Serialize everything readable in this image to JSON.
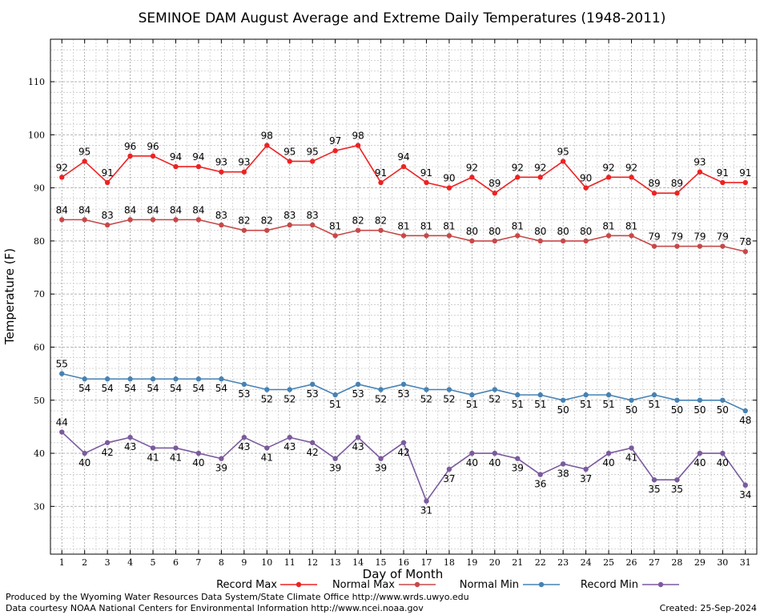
{
  "chart_data": {
    "type": "line",
    "title": "SEMINOE DAM August Average and Extreme Daily Temperatures (1948-2011)",
    "xlabel": "Day of Month",
    "ylabel": "Temperature (F)",
    "x": [
      1,
      2,
      3,
      4,
      5,
      6,
      7,
      8,
      9,
      10,
      11,
      12,
      13,
      14,
      15,
      16,
      17,
      18,
      19,
      20,
      21,
      22,
      23,
      24,
      25,
      26,
      27,
      28,
      29,
      30,
      31
    ],
    "xlim": [
      0.5,
      31.5
    ],
    "ylim": [
      21,
      118
    ],
    "yticks": [
      30,
      40,
      50,
      60,
      70,
      80,
      90,
      100,
      110
    ],
    "grid": true,
    "legend_position": "bottom",
    "series": [
      {
        "name": "Record Max",
        "color": "#ee2222",
        "marker": "circle",
        "values": [
          92,
          95,
          91,
          96,
          96,
          94,
          94,
          93,
          93,
          98,
          95,
          95,
          97,
          98,
          91,
          94,
          91,
          90,
          92,
          89,
          92,
          92,
          95,
          90,
          92,
          92,
          89,
          89,
          93,
          91,
          91
        ]
      },
      {
        "name": "Normal Max",
        "color": "#c84848",
        "marker": "circle",
        "values": [
          84,
          84,
          83,
          84,
          84,
          84,
          84,
          83,
          82,
          82,
          83,
          83,
          81,
          82,
          82,
          81,
          81,
          81,
          80,
          80,
          81,
          80,
          80,
          80,
          81,
          81,
          79,
          79,
          79,
          79,
          78
        ]
      },
      {
        "name": "Normal Min",
        "color": "#4682b4",
        "marker": "circle",
        "values": [
          55,
          54,
          54,
          54,
          54,
          54,
          54,
          54,
          53,
          52,
          52,
          53,
          51,
          53,
          52,
          53,
          52,
          52,
          51,
          52,
          51,
          51,
          50,
          51,
          51,
          50,
          51,
          50,
          50,
          50,
          48
        ]
      },
      {
        "name": "Record Min",
        "color": "#7b5a9e",
        "marker": "circle",
        "values": [
          44,
          40,
          42,
          43,
          41,
          41,
          40,
          39,
          43,
          41,
          43,
          42,
          39,
          43,
          39,
          42,
          31,
          37,
          40,
          40,
          39,
          36,
          38,
          37,
          40,
          41,
          35,
          35,
          40,
          40,
          34
        ]
      }
    ]
  },
  "footer": {
    "produced_by": "Produced by the Wyoming Water Resources Data System/State Climate Office http://www.wrds.uwyo.edu",
    "data_courtesy": "Data courtesy NOAA National Centers for Environmental Information http://www.ncei.noaa.gov",
    "created": "Created:  25-Sep-2024"
  }
}
